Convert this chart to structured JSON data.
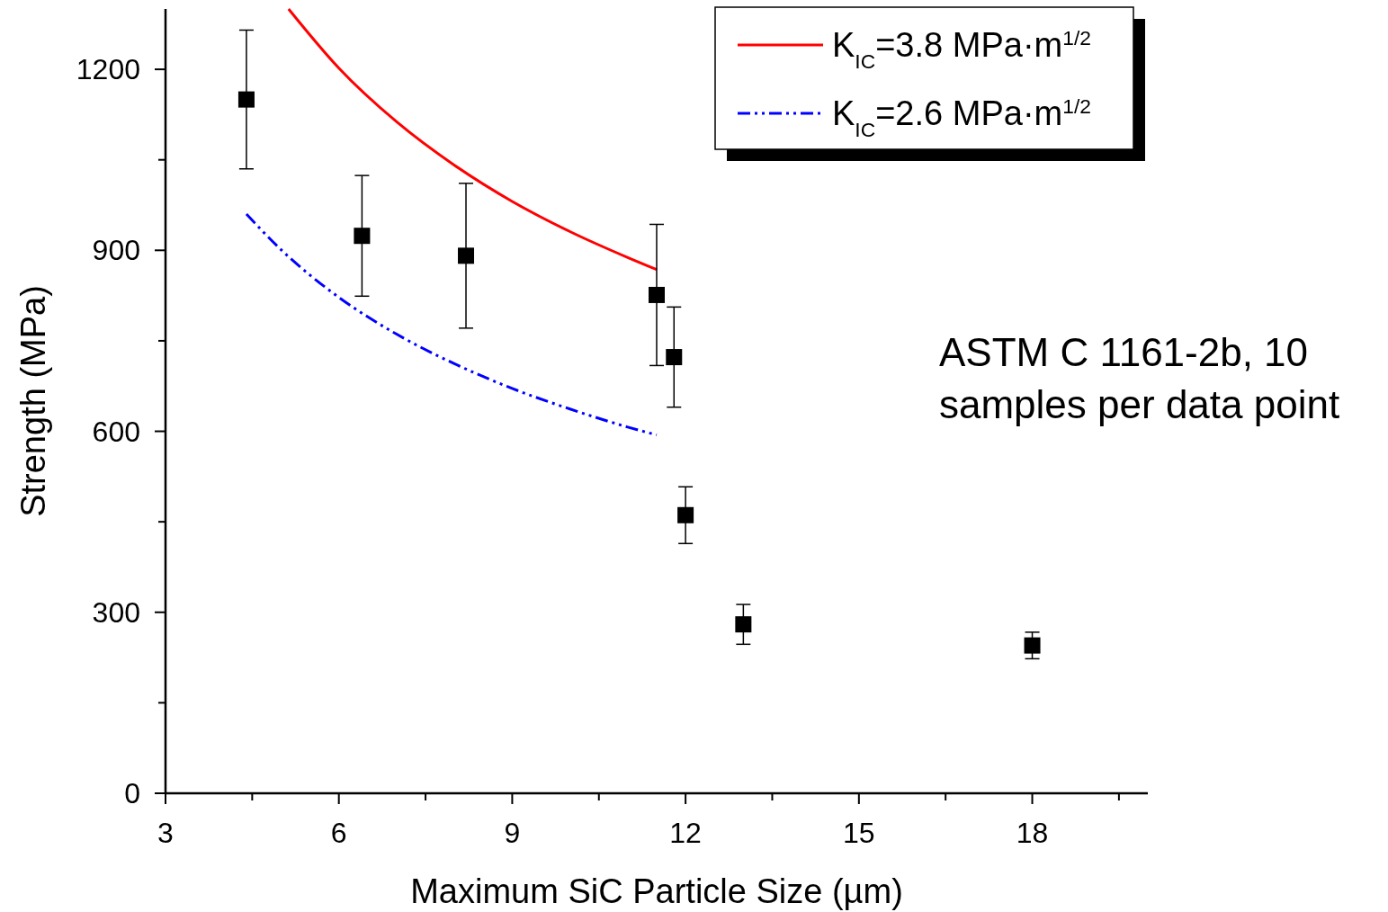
{
  "chart_data": {
    "type": "scatter",
    "xlabel": "Maximum SiC Particle Size (µm)",
    "ylabel": "Strength (MPa)",
    "xlim": [
      3,
      20
    ],
    "ylim": [
      0,
      1300
    ],
    "xticks": [
      3,
      {
        "value": 4.5,
        "label": null
      },
      6,
      {
        "value": 7.5,
        "label": null
      },
      9,
      {
        "value": 10.5,
        "label": null
      },
      12,
      {
        "value": 13.5,
        "label": null
      },
      15,
      {
        "value": 16.5,
        "label": null
      },
      18,
      {
        "value": 19.5,
        "label": null
      }
    ],
    "yticks": [
      0,
      {
        "value": 150,
        "label": null
      },
      300,
      {
        "value": 450,
        "label": null
      },
      600,
      {
        "value": 750,
        "label": null
      },
      900,
      {
        "value": 1050,
        "label": null
      },
      1200
    ],
    "legend": "top right",
    "annotations": [
      "ASTM C 1161-2b, 10 samples per data point"
    ],
    "series": [
      {
        "type": "line",
        "name": "K$_{IC}$=3.8 MPa·m$^{1/2}$",
        "color": "#ff0000",
        "line_style": "solid",
        "marker": "none",
        "x": [
          5.13,
          6,
          7,
          8,
          9,
          10,
          11,
          11.5
        ],
        "values": [
          1300,
          1202,
          1113,
          1041,
          981,
          931,
          888,
          868
        ]
      },
      {
        "type": "line",
        "name": "K$_{IC}$=2.6 MPa·m$^{1/2}$",
        "color": "#0000ff",
        "line_style": "dashed",
        "marker": "none",
        "x": [
          4.4,
          5,
          6,
          7,
          8,
          9,
          10,
          11,
          11.5
        ],
        "values": [
          960,
          901,
          822,
          761,
          712,
          671,
          637,
          607,
          594
        ]
      },
      {
        "color": "#000000",
        "marker": "square",
        "x": [
          4.4,
          6.4,
          8.2,
          11.5,
          11.8,
          12,
          13,
          18
        ],
        "values": [
          1150,
          924,
          891,
          826,
          723,
          461,
          280,
          245
        ],
        "errors": [
          115,
          100,
          120,
          117,
          83,
          47,
          33,
          22
        ]
      }
    ]
  }
}
